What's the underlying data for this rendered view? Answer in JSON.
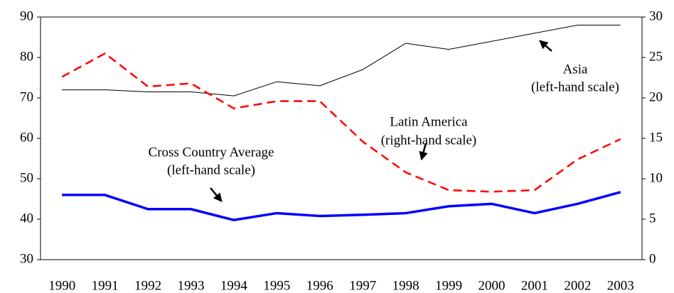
{
  "chart_data": {
    "type": "line",
    "categories": [
      "1990",
      "1991",
      "1992",
      "1993",
      "1994",
      "1995",
      "1996",
      "1997",
      "1998",
      "1999",
      "2000",
      "2001",
      "2002",
      "2003"
    ],
    "ylim": [
      30,
      90
    ],
    "yticks": [
      30,
      40,
      50,
      60,
      70,
      80,
      90
    ],
    "y2lim": [
      0,
      30
    ],
    "y2ticks": [
      0,
      5,
      10,
      15,
      20,
      25,
      30
    ],
    "grid": false,
    "series": [
      {
        "name": "Asia",
        "color": "#000000",
        "width": 1,
        "dash": false,
        "values": [
          72,
          72,
          71.5,
          71.5,
          70.5,
          74,
          73,
          77,
          83.5,
          82,
          84,
          86,
          88,
          88
        ]
      },
      {
        "name": "Latin America",
        "color": "#ff0000",
        "width": 2.5,
        "dash": true,
        "axis": "y2",
        "values": [
          22.6,
          25.5,
          21.4,
          21.8,
          18.7,
          19.6,
          19.6,
          14.6,
          10.8,
          8.6,
          8.4,
          8.6,
          12.4,
          14.9
        ]
      },
      {
        "name": "Cross Country Average",
        "color": "#0000ff",
        "width": 3.5,
        "dash": false,
        "values": [
          46,
          46,
          42.5,
          42.5,
          39.8,
          41.5,
          40.8,
          41.1,
          41.5,
          43.2,
          43.8,
          41.5,
          43.8,
          46.7
        ]
      }
    ],
    "annotations": [
      {
        "lines": [
          "Asia",
          "(left-hand scale)"
        ]
      },
      {
        "lines": [
          "Latin America",
          "(right-hand scale)"
        ]
      },
      {
        "lines": [
          "Cross Country Average",
          "(left-hand scale)"
        ]
      }
    ]
  }
}
